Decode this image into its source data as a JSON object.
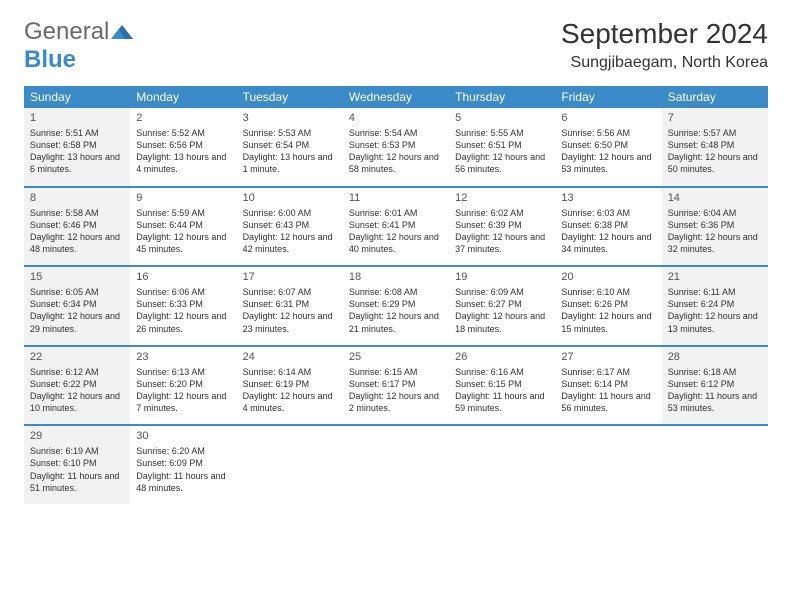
{
  "logo": {
    "general": "General",
    "blue": "Blue"
  },
  "header": {
    "month": "September 2024",
    "location": "Sungjibaegam, North Korea"
  },
  "weekdays": [
    "Sunday",
    "Monday",
    "Tuesday",
    "Wednesday",
    "Thursday",
    "Friday",
    "Saturday"
  ],
  "colors": {
    "accent": "#3b8bc9",
    "shade": "#f2f2f2",
    "white": "#ffffff"
  },
  "days": [
    {
      "n": "1",
      "shaded": true,
      "sunrise": "Sunrise: 5:51 AM",
      "sunset": "Sunset: 6:58 PM",
      "daylight": "Daylight: 13 hours and 6 minutes."
    },
    {
      "n": "2",
      "shaded": false,
      "sunrise": "Sunrise: 5:52 AM",
      "sunset": "Sunset: 6:56 PM",
      "daylight": "Daylight: 13 hours and 4 minutes."
    },
    {
      "n": "3",
      "shaded": false,
      "sunrise": "Sunrise: 5:53 AM",
      "sunset": "Sunset: 6:54 PM",
      "daylight": "Daylight: 13 hours and 1 minute."
    },
    {
      "n": "4",
      "shaded": false,
      "sunrise": "Sunrise: 5:54 AM",
      "sunset": "Sunset: 6:53 PM",
      "daylight": "Daylight: 12 hours and 58 minutes."
    },
    {
      "n": "5",
      "shaded": false,
      "sunrise": "Sunrise: 5:55 AM",
      "sunset": "Sunset: 6:51 PM",
      "daylight": "Daylight: 12 hours and 56 minutes."
    },
    {
      "n": "6",
      "shaded": false,
      "sunrise": "Sunrise: 5:56 AM",
      "sunset": "Sunset: 6:50 PM",
      "daylight": "Daylight: 12 hours and 53 minutes."
    },
    {
      "n": "7",
      "shaded": true,
      "sunrise": "Sunrise: 5:57 AM",
      "sunset": "Sunset: 6:48 PM",
      "daylight": "Daylight: 12 hours and 50 minutes."
    },
    {
      "n": "8",
      "shaded": true,
      "sunrise": "Sunrise: 5:58 AM",
      "sunset": "Sunset: 6:46 PM",
      "daylight": "Daylight: 12 hours and 48 minutes."
    },
    {
      "n": "9",
      "shaded": false,
      "sunrise": "Sunrise: 5:59 AM",
      "sunset": "Sunset: 6:44 PM",
      "daylight": "Daylight: 12 hours and 45 minutes."
    },
    {
      "n": "10",
      "shaded": false,
      "sunrise": "Sunrise: 6:00 AM",
      "sunset": "Sunset: 6:43 PM",
      "daylight": "Daylight: 12 hours and 42 minutes."
    },
    {
      "n": "11",
      "shaded": false,
      "sunrise": "Sunrise: 6:01 AM",
      "sunset": "Sunset: 6:41 PM",
      "daylight": "Daylight: 12 hours and 40 minutes."
    },
    {
      "n": "12",
      "shaded": false,
      "sunrise": "Sunrise: 6:02 AM",
      "sunset": "Sunset: 6:39 PM",
      "daylight": "Daylight: 12 hours and 37 minutes."
    },
    {
      "n": "13",
      "shaded": false,
      "sunrise": "Sunrise: 6:03 AM",
      "sunset": "Sunset: 6:38 PM",
      "daylight": "Daylight: 12 hours and 34 minutes."
    },
    {
      "n": "14",
      "shaded": true,
      "sunrise": "Sunrise: 6:04 AM",
      "sunset": "Sunset: 6:36 PM",
      "daylight": "Daylight: 12 hours and 32 minutes."
    },
    {
      "n": "15",
      "shaded": true,
      "sunrise": "Sunrise: 6:05 AM",
      "sunset": "Sunset: 6:34 PM",
      "daylight": "Daylight: 12 hours and 29 minutes."
    },
    {
      "n": "16",
      "shaded": false,
      "sunrise": "Sunrise: 6:06 AM",
      "sunset": "Sunset: 6:33 PM",
      "daylight": "Daylight: 12 hours and 26 minutes."
    },
    {
      "n": "17",
      "shaded": false,
      "sunrise": "Sunrise: 6:07 AM",
      "sunset": "Sunset: 6:31 PM",
      "daylight": "Daylight: 12 hours and 23 minutes."
    },
    {
      "n": "18",
      "shaded": false,
      "sunrise": "Sunrise: 6:08 AM",
      "sunset": "Sunset: 6:29 PM",
      "daylight": "Daylight: 12 hours and 21 minutes."
    },
    {
      "n": "19",
      "shaded": false,
      "sunrise": "Sunrise: 6:09 AM",
      "sunset": "Sunset: 6:27 PM",
      "daylight": "Daylight: 12 hours and 18 minutes."
    },
    {
      "n": "20",
      "shaded": false,
      "sunrise": "Sunrise: 6:10 AM",
      "sunset": "Sunset: 6:26 PM",
      "daylight": "Daylight: 12 hours and 15 minutes."
    },
    {
      "n": "21",
      "shaded": true,
      "sunrise": "Sunrise: 6:11 AM",
      "sunset": "Sunset: 6:24 PM",
      "daylight": "Daylight: 12 hours and 13 minutes."
    },
    {
      "n": "22",
      "shaded": true,
      "sunrise": "Sunrise: 6:12 AM",
      "sunset": "Sunset: 6:22 PM",
      "daylight": "Daylight: 12 hours and 10 minutes."
    },
    {
      "n": "23",
      "shaded": false,
      "sunrise": "Sunrise: 6:13 AM",
      "sunset": "Sunset: 6:20 PM",
      "daylight": "Daylight: 12 hours and 7 minutes."
    },
    {
      "n": "24",
      "shaded": false,
      "sunrise": "Sunrise: 6:14 AM",
      "sunset": "Sunset: 6:19 PM",
      "daylight": "Daylight: 12 hours and 4 minutes."
    },
    {
      "n": "25",
      "shaded": false,
      "sunrise": "Sunrise: 6:15 AM",
      "sunset": "Sunset: 6:17 PM",
      "daylight": "Daylight: 12 hours and 2 minutes."
    },
    {
      "n": "26",
      "shaded": false,
      "sunrise": "Sunrise: 6:16 AM",
      "sunset": "Sunset: 6:15 PM",
      "daylight": "Daylight: 11 hours and 59 minutes."
    },
    {
      "n": "27",
      "shaded": false,
      "sunrise": "Sunrise: 6:17 AM",
      "sunset": "Sunset: 6:14 PM",
      "daylight": "Daylight: 11 hours and 56 minutes."
    },
    {
      "n": "28",
      "shaded": true,
      "sunrise": "Sunrise: 6:18 AM",
      "sunset": "Sunset: 6:12 PM",
      "daylight": "Daylight: 11 hours and 53 minutes."
    },
    {
      "n": "29",
      "shaded": true,
      "sunrise": "Sunrise: 6:19 AM",
      "sunset": "Sunset: 6:10 PM",
      "daylight": "Daylight: 11 hours and 51 minutes."
    },
    {
      "n": "30",
      "shaded": false,
      "sunrise": "Sunrise: 6:20 AM",
      "sunset": "Sunset: 6:09 PM",
      "daylight": "Daylight: 11 hours and 48 minutes."
    }
  ]
}
